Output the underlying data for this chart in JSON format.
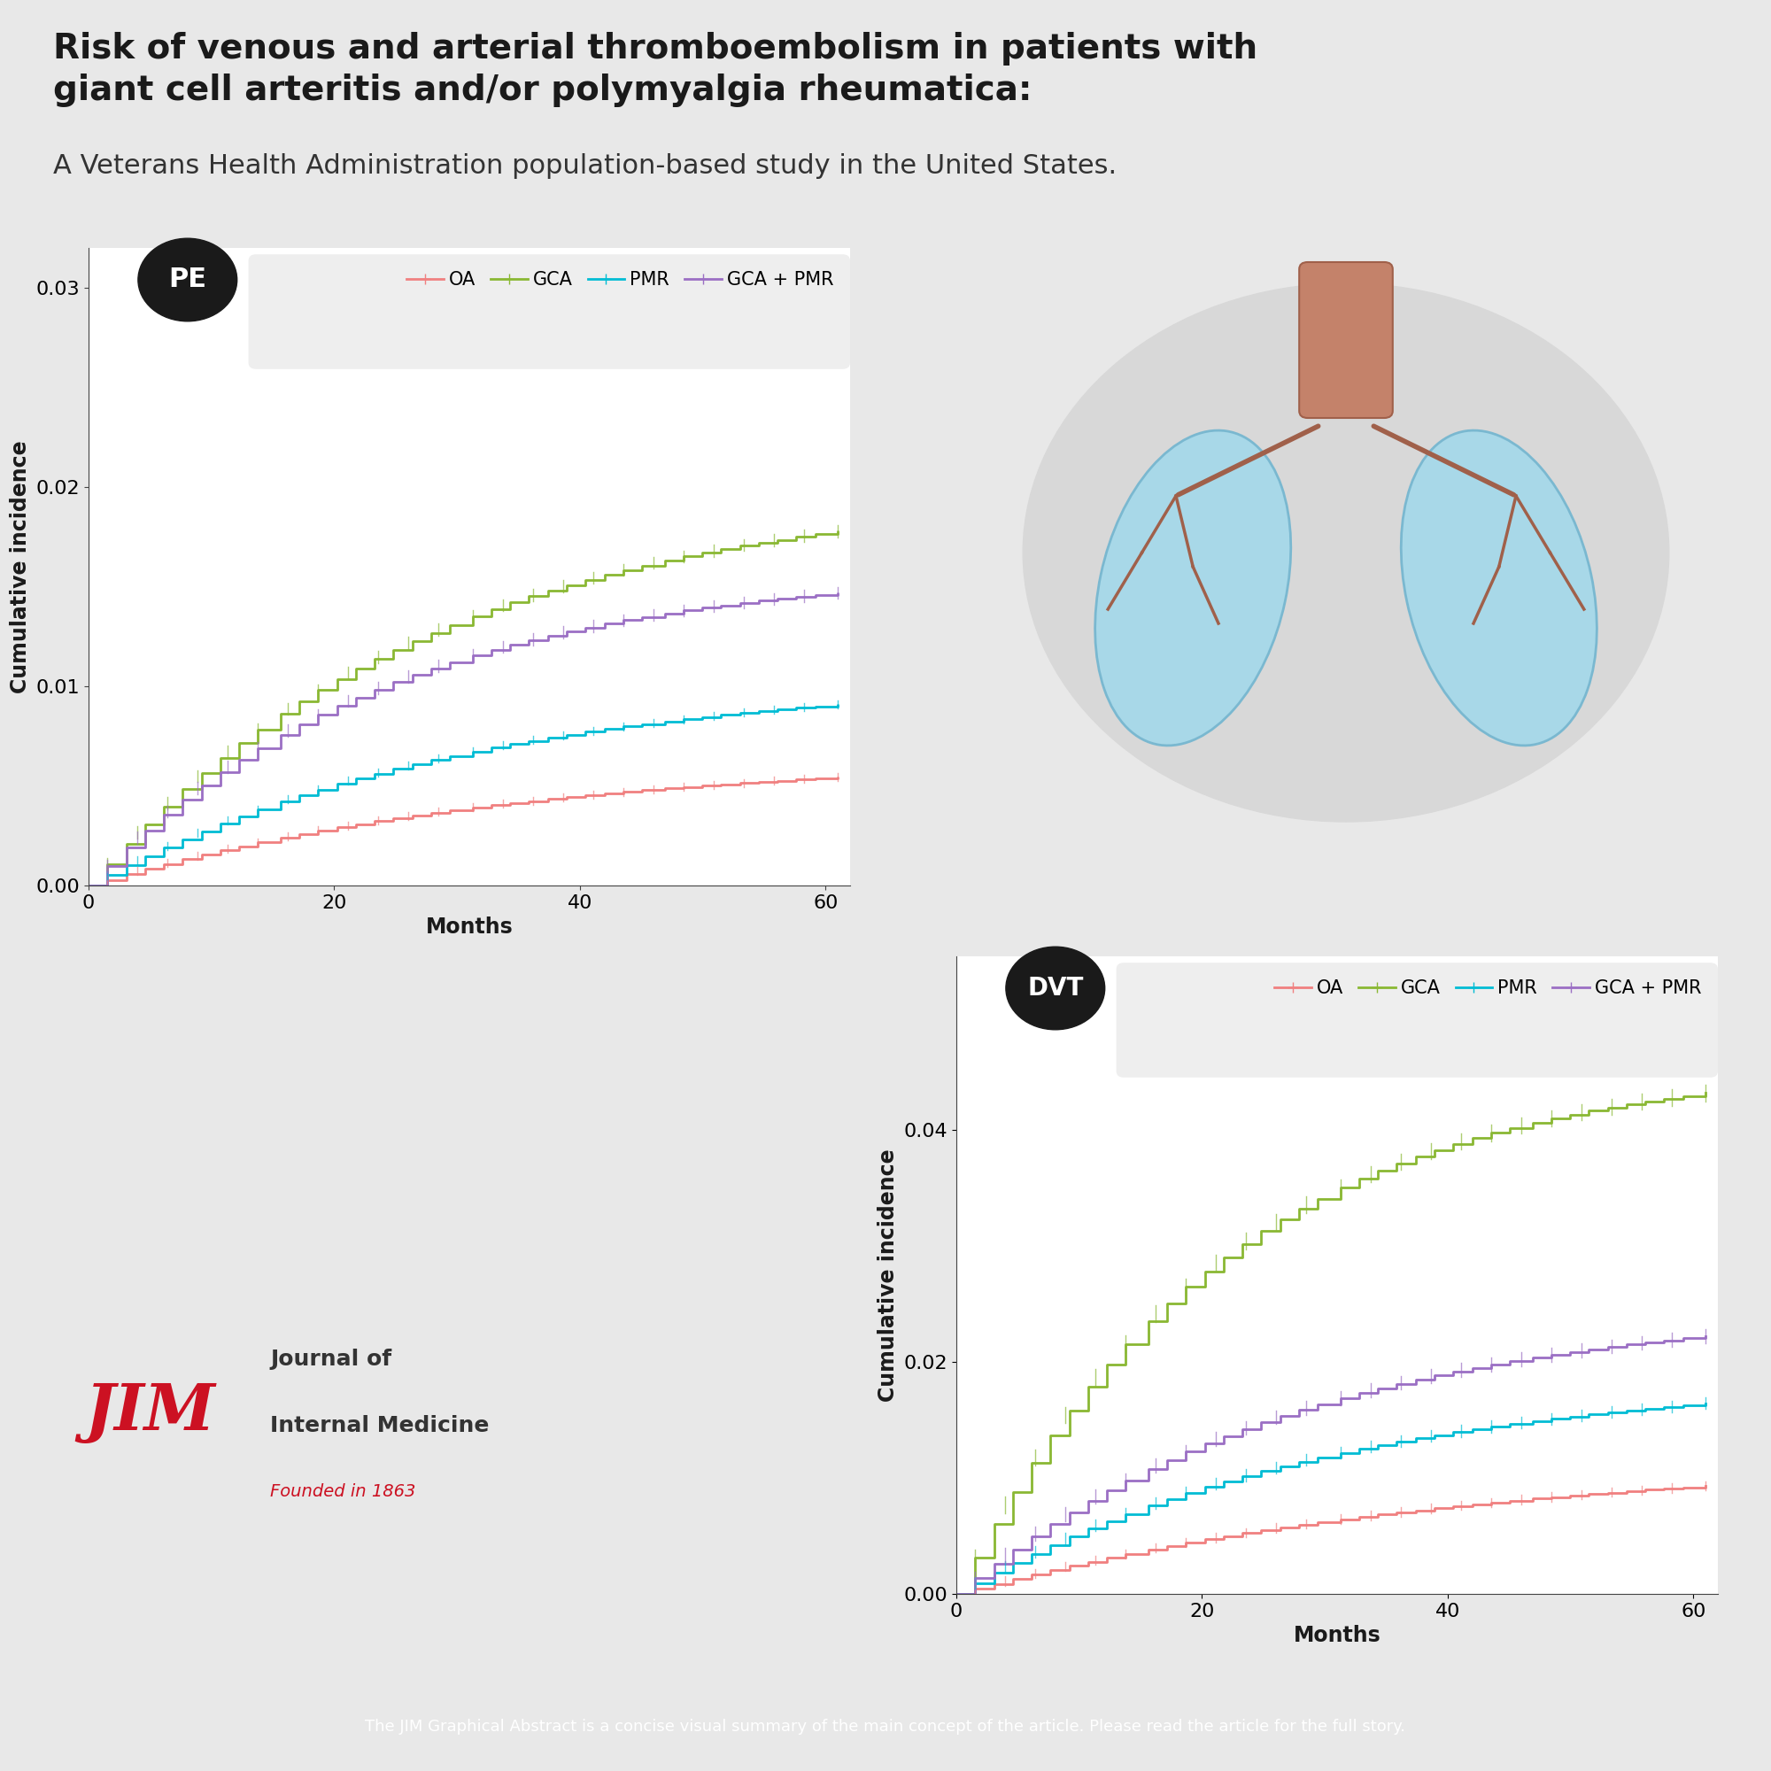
{
  "title_bold": "Risk of venous and arterial thromboembolism in patients with\ngiant cell arteritis and/or polymyalgia rheumatica:",
  "title_normal": "A Veterans Health Administration population-based study in the United States.",
  "footer": "The JIM Graphical Abstract is a concise visual summary of the main concept of the article. Please read the article for the full story.",
  "background_color": "#e8e8e8",
  "plot_bg": "#ffffff",
  "colors": {
    "OA": "#f08080",
    "GCA": "#8ab833",
    "PMR": "#00bcd4",
    "GCA_PMR": "#9b6fc4"
  },
  "pe_ylim": [
    0,
    0.032
  ],
  "pe_yticks": [
    0.0,
    0.01,
    0.02,
    0.03
  ],
  "dvt_ylim": [
    0,
    0.055
  ],
  "dvt_yticks": [
    0.0,
    0.02,
    0.04
  ],
  "xlim": [
    0,
    62
  ],
  "xticks": [
    0,
    20,
    40,
    60
  ]
}
